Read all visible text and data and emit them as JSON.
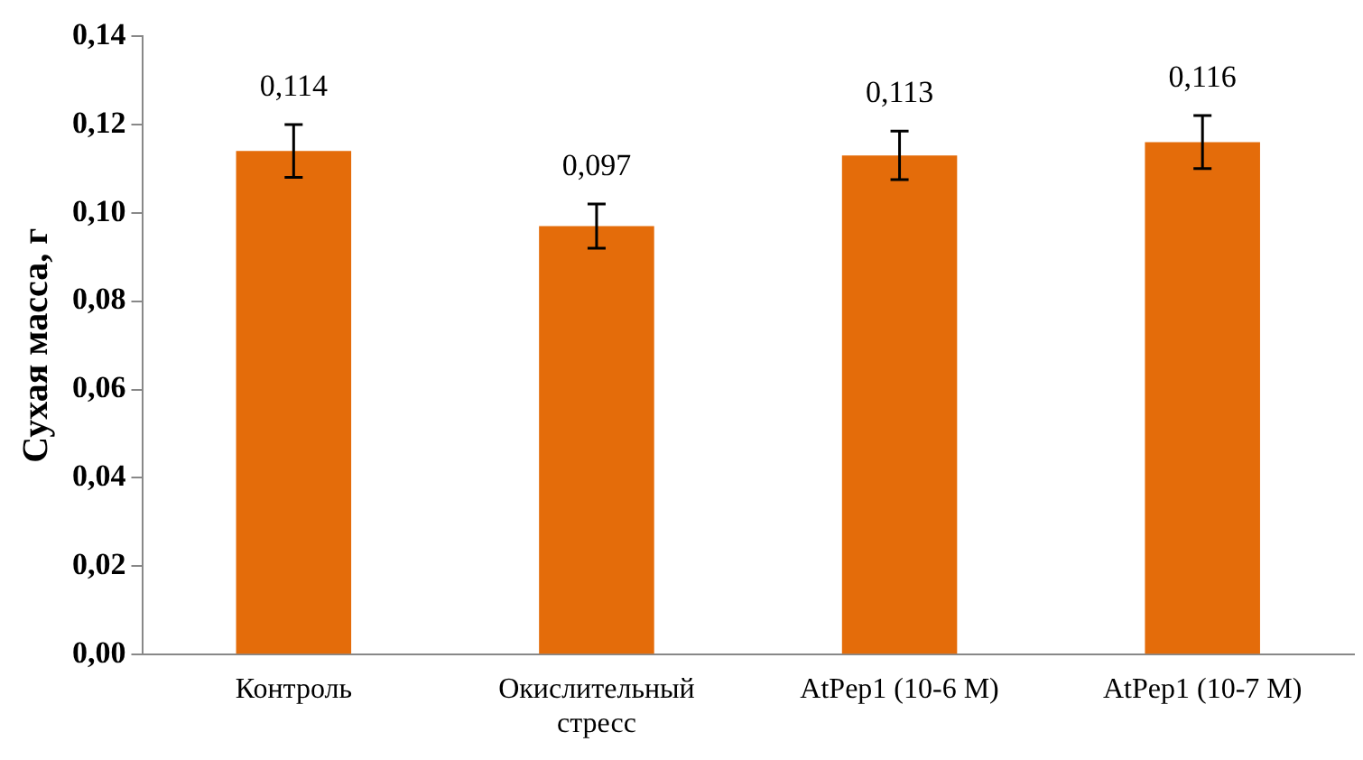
{
  "chart_data": {
    "type": "bar",
    "ylabel": "Сухая масса, г",
    "categories": [
      "Контроль",
      "Окислительный стресс",
      "AtPep1 (10-6 M)",
      "AtPep1 (10-7 M)"
    ],
    "values": [
      0.114,
      0.097,
      0.113,
      0.116
    ],
    "errors": [
      0.006,
      0.005,
      0.0055,
      0.006
    ],
    "value_labels": [
      "0,114",
      "0,097",
      "0,113",
      "0,116"
    ],
    "color": "#e46c0a",
    "ylim": [
      0,
      0.14
    ],
    "yticks": [
      {
        "value": 0,
        "label": "0,00"
      },
      {
        "value": 0.02,
        "label": "0,02"
      },
      {
        "value": 0.04,
        "label": "0,04"
      },
      {
        "value": 0.06,
        "label": "0,06"
      },
      {
        "value": 0.08,
        "label": "0,08"
      },
      {
        "value": 0.1,
        "label": "0,10"
      },
      {
        "value": 0.12,
        "label": "0,12"
      },
      {
        "value": 0.14,
        "label": "0,14"
      }
    ],
    "grid": false,
    "legend": false
  }
}
